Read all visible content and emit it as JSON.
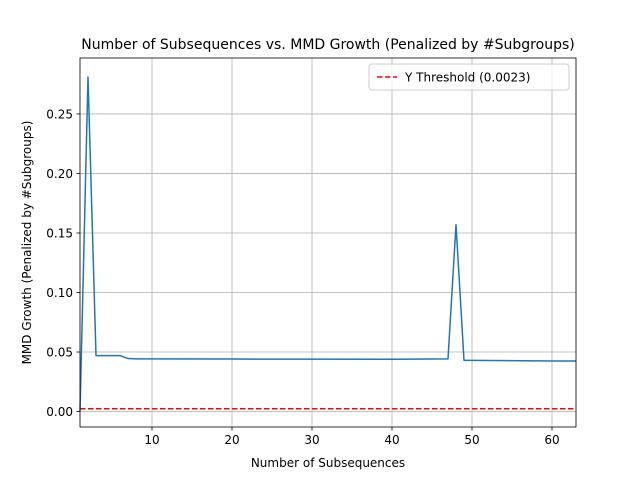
{
  "chart_data": {
    "type": "line",
    "title": "Number of Subsequences vs. MMD Growth (Penalized by #Subgroups)",
    "xlabel": "Number of Subsequences",
    "ylabel": "MMD Growth (Penalized by #Subgroups)",
    "xlim": [
      1,
      63
    ],
    "ylim": [
      -0.013,
      0.297
    ],
    "xticks": [
      10,
      20,
      30,
      40,
      50,
      60
    ],
    "yticks": [
      0.0,
      0.05,
      0.1,
      0.15,
      0.2,
      0.25
    ],
    "xtick_labels": [
      "10",
      "20",
      "30",
      "40",
      "50",
      "60"
    ],
    "ytick_labels": [
      "0.00",
      "0.05",
      "0.10",
      "0.15",
      "0.20",
      "0.25"
    ],
    "grid": true,
    "legend_position": "top-right",
    "series": [
      {
        "color": "#1f77b4",
        "style": "solid",
        "x": [
          1,
          2,
          3,
          4,
          5,
          6,
          7,
          8,
          10,
          20,
          30,
          40,
          47,
          48,
          49,
          50,
          60,
          63
        ],
        "y": [
          0.0,
          0.281,
          0.047,
          0.047,
          0.047,
          0.047,
          0.0445,
          0.0442,
          0.0442,
          0.0441,
          0.044,
          0.0439,
          0.0442,
          0.157,
          0.043,
          0.043,
          0.0425,
          0.0425
        ]
      },
      {
        "name": "Y Threshold (0.0023)",
        "color": "#ff0000",
        "style": "dashed",
        "x": [
          1,
          63
        ],
        "y": [
          0.0023,
          0.0023
        ]
      }
    ]
  }
}
